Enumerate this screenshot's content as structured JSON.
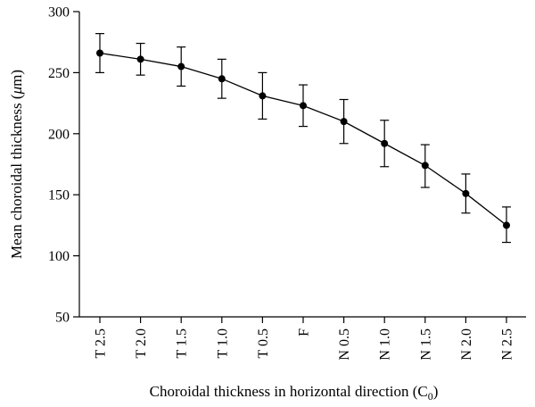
{
  "chart_data": {
    "type": "line",
    "categories": [
      "T 2.5",
      "T 2.0",
      "T 1.5",
      "T 1.0",
      "T 0.5",
      "F",
      "N 0.5",
      "N 1.0",
      "N 1.5",
      "N 2.0",
      "N 2.5"
    ],
    "series": [
      {
        "values": [
          266,
          261,
          255,
          245,
          231,
          223,
          210,
          192,
          174,
          151,
          125
        ],
        "error_low": [
          250,
          248,
          239,
          229,
          212,
          206,
          192,
          173,
          156,
          135,
          111
        ],
        "error_high": [
          282,
          274,
          271,
          261,
          250,
          240,
          228,
          211,
          191,
          167,
          140
        ]
      }
    ],
    "xlabel_main": "Choroidal thickness in horizontal direction (C",
    "xlabel_sub": "0",
    "xlabel_end": ")",
    "ylabel_main": "Mean choroidal thickness (",
    "ylabel_mu": "μ",
    "ylabel_end": "m)",
    "ylim": [
      50,
      300
    ],
    "yticks": [
      50,
      100,
      150,
      200,
      250,
      300
    ],
    "grid": false,
    "legend": "none"
  }
}
